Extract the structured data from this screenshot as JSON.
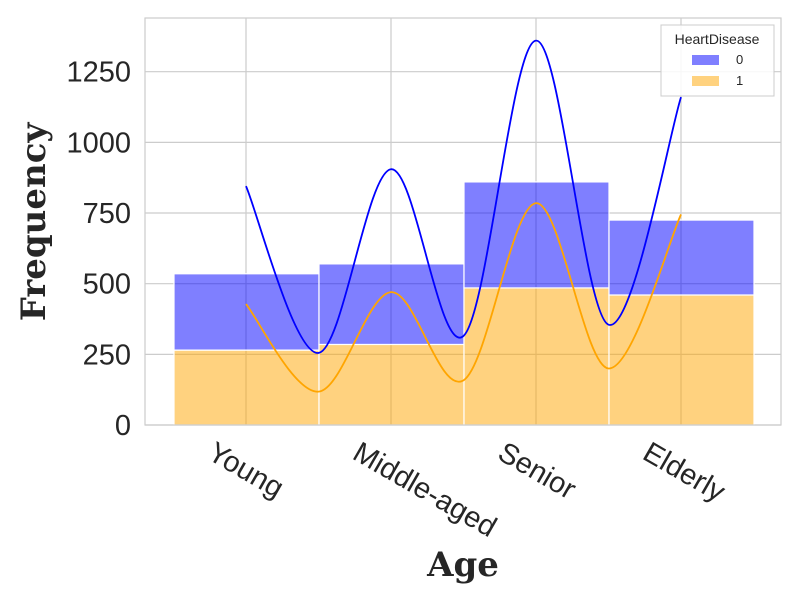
{
  "chart_data": {
    "type": "bar",
    "subtype": "stacked-histogram-with-kde",
    "title": "",
    "xlabel": "Age",
    "ylabel": "Frequency",
    "categories": [
      "Young",
      "Middle-aged",
      "Senior",
      "Elderly"
    ],
    "ylim": [
      0,
      1440
    ],
    "yticks": [
      0,
      250,
      500,
      750,
      1000,
      1250
    ],
    "grid": true,
    "legend": {
      "title": "HeartDisease",
      "position": "top-right"
    },
    "series": [
      {
        "name": "0",
        "color": "#0000ff",
        "values": [
          270,
          285,
          375,
          265
        ],
        "stack_top": [
          535,
          570,
          860,
          725
        ]
      },
      {
        "name": "1",
        "color": "#ffa500",
        "values": [
          265,
          285,
          485,
          460
        ]
      }
    ],
    "kde": [
      {
        "series": "0",
        "color": "#0000ff",
        "points": [
          [
            0,
            845
          ],
          [
            0.5,
            255
          ],
          [
            1,
            905
          ],
          [
            1.5,
            315
          ],
          [
            2,
            1360
          ],
          [
            2.5,
            355
          ],
          [
            3,
            1160
          ]
        ]
      },
      {
        "series": "1",
        "color": "#ffa500",
        "points": [
          [
            0,
            428
          ],
          [
            0.5,
            118
          ],
          [
            1,
            470
          ],
          [
            1.5,
            158
          ],
          [
            2,
            785
          ],
          [
            2.5,
            200
          ],
          [
            3,
            745
          ]
        ]
      }
    ]
  }
}
